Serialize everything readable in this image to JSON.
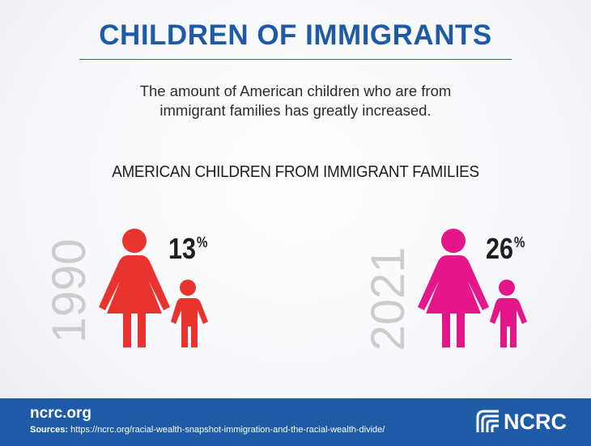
{
  "header": {
    "title": "CHILDREN OF IMMIGRANTS",
    "intro_line_1": "The amount of American children who are from",
    "intro_line_2": "immigrant families has greatly increased."
  },
  "subtitle": "AMERICAN CHILDREN FROM IMMIGRANT FAMILIES",
  "stats": [
    {
      "year": "1990",
      "value": "13",
      "unit": "%",
      "color": "#e8332f"
    },
    {
      "year": "2021",
      "value": "26",
      "unit": "%",
      "color": "#e5168a"
    }
  ],
  "footer": {
    "site": "ncrc.org",
    "sources_label": "Sources:",
    "sources_url": "https://ncrc.org/racial-wealth-snapshot-immigration-and-the-racial-wealth-divide/",
    "logo_text": "NCRC",
    "background": "#1e5ca8"
  },
  "icons": {
    "figure": "parent-and-child-icon",
    "logo": "ncrc-logo-icon"
  }
}
